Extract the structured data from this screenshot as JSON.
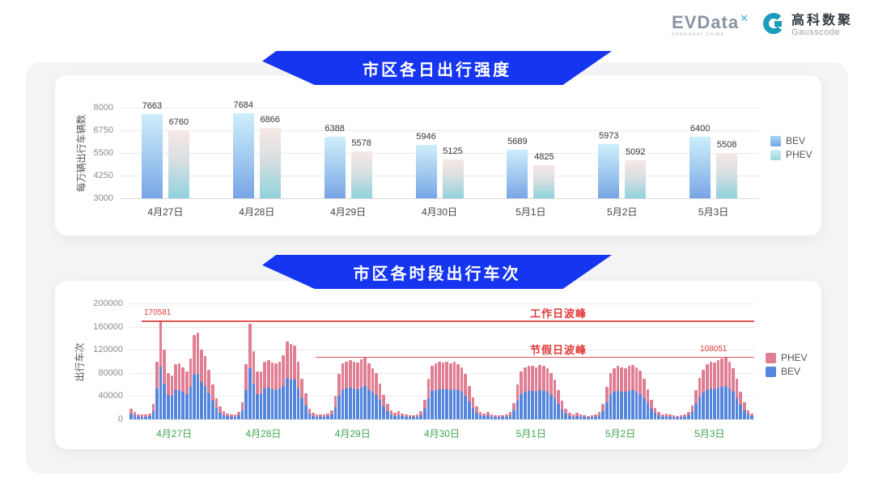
{
  "logo": {
    "evdata": "EVData",
    "evdata_x": "✕",
    "evdata_sub": "SHANGHAI CHINA",
    "partner_cn": "高科数聚",
    "partner_en": "Gausscode"
  },
  "colors": {
    "banner_blue": "#1535f0",
    "bev_bottom": "#5586dd",
    "phev_bottom": "#e07e92",
    "annotation_red": "#e03a36",
    "holiday_label_green": "#3da64c",
    "panel_gray": "#f4f4f6"
  },
  "chart_data": [
    {
      "type": "bar",
      "title": "市区各日出行强度",
      "ylabel": "每万辆出行车辆数",
      "xlabel": "",
      "ylim": [
        3000,
        8000
      ],
      "yticks": [
        3000,
        4250,
        5500,
        6750,
        8000
      ],
      "grid": true,
      "legend_position": "right",
      "categories": [
        "4月27日",
        "4月28日",
        "4月29日",
        "4月30日",
        "5月1日",
        "5月2日",
        "5月3日"
      ],
      "series": [
        {
          "name": "BEV",
          "values": [
            7663,
            7684,
            6388,
            5946,
            5689,
            5973,
            6400
          ]
        },
        {
          "name": "PHEV",
          "values": [
            6760,
            6866,
            5578,
            5125,
            4825,
            5092,
            5508
          ]
        }
      ]
    },
    {
      "type": "bar",
      "subtype": "stacked-hourly",
      "title": "市区各时段出行车次",
      "ylabel": "出行车次",
      "xlabel": "",
      "ylim": [
        0,
        200000
      ],
      "yticks": [
        0,
        40000,
        80000,
        120000,
        160000,
        200000
      ],
      "grid": true,
      "legend_position": "right",
      "bars_per_day": 24,
      "categories": [
        "4月27日",
        "4月28日",
        "4月29日",
        "4月30日",
        "5月1日",
        "5月2日",
        "5月3日"
      ],
      "annotations": [
        {
          "label": "工作日波峰",
          "value": 170581,
          "value_label": "170581"
        },
        {
          "label": "节假日波峰",
          "value": 108051,
          "value_label": "108051"
        }
      ],
      "series": [
        {
          "name": "BEV",
          "values": [
            9500,
            6400,
            4800,
            4200,
            4200,
            5300,
            14000,
            53000,
            91000,
            62000,
            42000,
            40000,
            50000,
            51000,
            48000,
            43000,
            56000,
            77000,
            79000,
            64000,
            58000,
            45000,
            32000,
            20000,
            11700,
            7400,
            5300,
            4800,
            4800,
            6400,
            16000,
            50000,
            88000,
            62000,
            43000,
            43000,
            53000,
            54000,
            52000,
            51000,
            53000,
            58000,
            71000,
            69000,
            68000,
            53000,
            37000,
            24000,
            9500,
            5800,
            4800,
            4200,
            4200,
            5300,
            8500,
            21000,
            41000,
            51000,
            53000,
            54000,
            53000,
            52000,
            55000,
            57000,
            51000,
            47000,
            42000,
            33000,
            22000,
            14000,
            8000,
            5800,
            7400,
            5300,
            4200,
            3700,
            3700,
            4800,
            7400,
            18000,
            37000,
            49000,
            51000,
            52000,
            52000,
            52000,
            51000,
            52000,
            50000,
            48000,
            41000,
            31000,
            20000,
            11700,
            6900,
            5300,
            6400,
            4800,
            3700,
            3700,
            3700,
            4200,
            6400,
            15000,
            32000,
            43000,
            48000,
            49000,
            49000,
            48000,
            50000,
            49000,
            47000,
            42000,
            36000,
            26000,
            17000,
            9500,
            5800,
            4800,
            5800,
            4200,
            3700,
            3200,
            3700,
            4200,
            6400,
            14000,
            30000,
            42000,
            47000,
            49000,
            48000,
            47000,
            49000,
            50000,
            48000,
            44000,
            37000,
            28000,
            18000,
            10600,
            6400,
            4800,
            5300,
            4200,
            3700,
            3200,
            3700,
            4200,
            6400,
            12700,
            26000,
            38000,
            46000,
            50000,
            53000,
            52000,
            54000,
            56000,
            57000,
            53000,
            47000,
            37000,
            25000,
            16000,
            8500,
            5300
          ]
        },
        {
          "name": "PHEV",
          "values": [
            8500,
            5600,
            4200,
            3800,
            3800,
            4700,
            13000,
            47000,
            79581,
            58000,
            38000,
            36000,
            45000,
            45000,
            42000,
            39000,
            49000,
            68000,
            71000,
            56000,
            51000,
            40000,
            28000,
            17000,
            10300,
            6600,
            4700,
            4200,
            4200,
            5600,
            14000,
            45000,
            77000,
            55000,
            39000,
            39000,
            47000,
            48000,
            46000,
            45000,
            47000,
            52000,
            63000,
            61000,
            60000,
            47000,
            33000,
            21000,
            8500,
            5200,
            4200,
            3800,
            3800,
            4700,
            7500,
            19000,
            37000,
            45000,
            47000,
            48000,
            47000,
            46000,
            48000,
            50000,
            45000,
            41000,
            38000,
            29000,
            20000,
            12000,
            7000,
            5200,
            6600,
            4700,
            3800,
            3300,
            3300,
            4200,
            6600,
            16000,
            33000,
            43000,
            46000,
            47000,
            46000,
            47000,
            45000,
            47000,
            45000,
            42000,
            37000,
            27000,
            18000,
            10300,
            6100,
            4700,
            5600,
            4200,
            3300,
            3300,
            3300,
            3800,
            5600,
            13000,
            28000,
            39000,
            42000,
            44000,
            43000,
            42000,
            44000,
            43000,
            41000,
            38000,
            32000,
            24000,
            15000,
            8500,
            5200,
            4200,
            5200,
            3800,
            3300,
            2800,
            3300,
            3800,
            5600,
            12000,
            26000,
            38000,
            41000,
            43000,
            42000,
            41000,
            43000,
            44000,
            42000,
            40000,
            33000,
            24000,
            16000,
            9400,
            5600,
            4200,
            4700,
            3800,
            3300,
            2800,
            3300,
            3800,
            5600,
            11300,
            24000,
            34000,
            40000,
            45000,
            47000,
            46000,
            48000,
            49000,
            51051,
            47000,
            41000,
            33000,
            23000,
            14000,
            7500,
            4700
          ]
        }
      ]
    }
  ]
}
